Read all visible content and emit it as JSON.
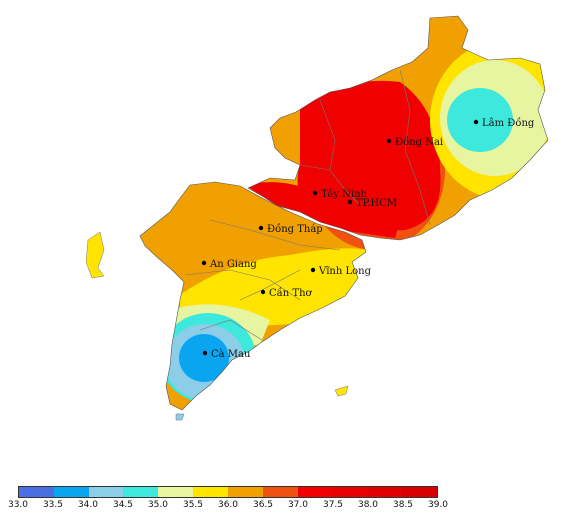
{
  "map": {
    "cities": [
      {
        "name": "Lâm Đồng"
      },
      {
        "name": "Đồng Nai"
      },
      {
        "name": "Tây Ninh"
      },
      {
        "name": "TP.HCM"
      },
      {
        "name": "Đồng Tháp"
      },
      {
        "name": "An Giang"
      },
      {
        "name": "Vĩnh Long"
      },
      {
        "name": "Cần Thơ"
      },
      {
        "name": "Cà Mau"
      }
    ]
  },
  "legend": {
    "colors": [
      "#4a6fe3",
      "#0aa5f0",
      "#8ccde8",
      "#3de8dc",
      "#e8f5a0",
      "#ffe400",
      "#f0a000",
      "#f05010",
      "#f00000",
      "#e80000",
      "#e00000",
      "#d80000"
    ],
    "ticks": [
      "33.0",
      "33.5",
      "34.0",
      "34.5",
      "35.0",
      "35.5",
      "36.0",
      "36.5",
      "37.0",
      "37.5",
      "38.0",
      "38.5",
      "39.0"
    ]
  }
}
